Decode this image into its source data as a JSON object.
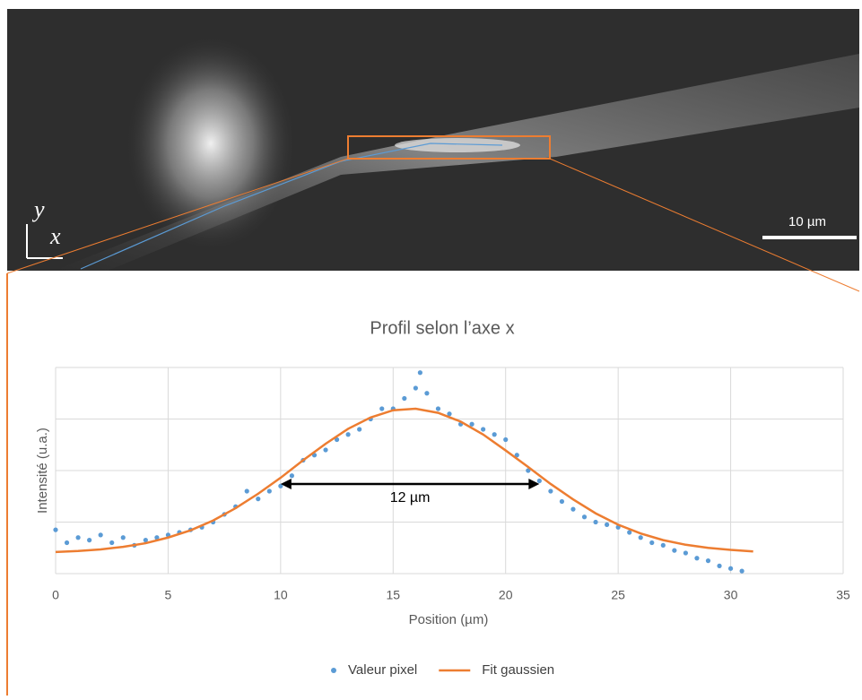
{
  "image": {
    "axis_labels": [
      "y",
      "x"
    ],
    "scale_label": "10 µm"
  },
  "chart_data": {
    "type": "scatter",
    "title": "Profil selon l’axe x",
    "x_label": "Position (µm)",
    "y_label": "Intensité (u.a.)",
    "xlim": [
      0,
      35
    ],
    "xticks": [
      0,
      5,
      10,
      15,
      20,
      25,
      30,
      35
    ],
    "ylim": [
      0,
      4
    ],
    "yticks": [
      0,
      1,
      2,
      3,
      4
    ],
    "ytick_labels": false,
    "grid": true,
    "legend": "bottom",
    "annotation": {
      "text": "12 µm",
      "x": [
        10,
        21.5
      ],
      "y": 1.74
    },
    "series": [
      {
        "name": "Valeur pixel",
        "type": "scatter",
        "color": "#5b9bd5",
        "x": [
          0,
          0.5,
          1,
          1.5,
          2,
          2.5,
          3,
          3.5,
          4,
          4.5,
          5,
          5.5,
          6,
          6.5,
          7,
          7.5,
          8,
          8.5,
          9,
          9.5,
          10,
          10.5,
          11,
          11.5,
          12,
          12.5,
          13,
          13.5,
          14,
          14.5,
          15,
          15.5,
          16,
          16.2,
          16.5,
          17,
          17.5,
          18,
          18.5,
          19,
          19.5,
          20,
          20.5,
          21,
          21.5,
          22,
          22.5,
          23,
          23.5,
          24,
          24.5,
          25,
          25.5,
          26,
          26.5,
          27,
          27.5,
          28,
          28.5,
          29,
          29.5,
          30,
          30.5
        ],
        "values": [
          0.85,
          0.6,
          0.7,
          0.65,
          0.75,
          0.6,
          0.7,
          0.55,
          0.65,
          0.7,
          0.75,
          0.8,
          0.85,
          0.9,
          1.0,
          1.15,
          1.3,
          1.6,
          1.45,
          1.6,
          1.7,
          1.9,
          2.2,
          2.3,
          2.4,
          2.6,
          2.7,
          2.8,
          3.0,
          3.2,
          3.2,
          3.4,
          3.6,
          3.9,
          3.5,
          3.2,
          3.1,
          2.9,
          2.9,
          2.8,
          2.7,
          2.6,
          2.3,
          2.0,
          1.8,
          1.6,
          1.4,
          1.25,
          1.1,
          1.0,
          0.95,
          0.9,
          0.8,
          0.7,
          0.6,
          0.55,
          0.45,
          0.4,
          0.3,
          0.25,
          0.15,
          0.1,
          0.05
        ]
      },
      {
        "name": "Fit gaussien",
        "type": "line",
        "color": "#ed7d31",
        "x": [
          0,
          1,
          2,
          3,
          4,
          5,
          6,
          7,
          8,
          9,
          10,
          11,
          12,
          13,
          14,
          15,
          16,
          17,
          18,
          19,
          20,
          21,
          22,
          23,
          24,
          25,
          26,
          27,
          28,
          29,
          30,
          31
        ],
        "values": [
          0.42,
          0.44,
          0.47,
          0.52,
          0.59,
          0.7,
          0.84,
          1.03,
          1.27,
          1.55,
          1.86,
          2.2,
          2.52,
          2.81,
          3.03,
          3.17,
          3.2,
          3.12,
          2.95,
          2.7,
          2.39,
          2.07,
          1.74,
          1.44,
          1.17,
          0.95,
          0.78,
          0.65,
          0.56,
          0.5,
          0.46,
          0.43
        ]
      }
    ]
  }
}
